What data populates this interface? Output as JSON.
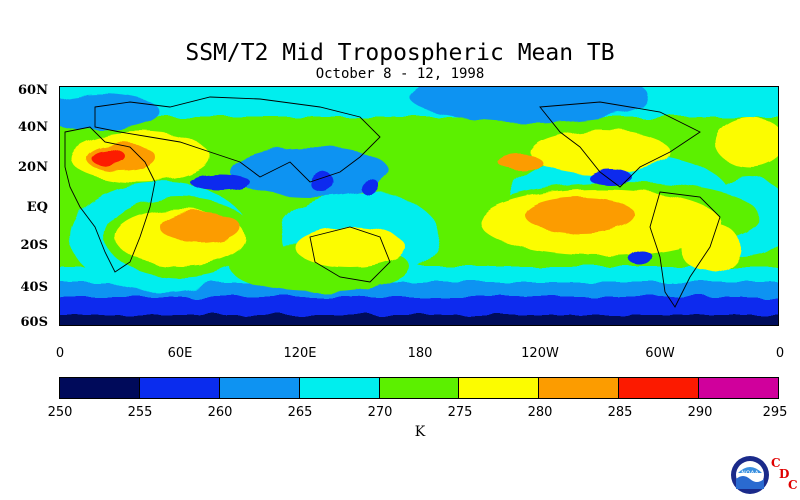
{
  "title": "SSM/T2 Mid Tropospheric Mean TB",
  "subtitle": "October 8 - 12, 1998",
  "lat_labels": [
    "60N",
    "40N",
    "20N",
    "EQ",
    "20S",
    "40S",
    "60S"
  ],
  "lon_labels": [
    "0",
    "60E",
    "120E",
    "180",
    "120W",
    "60W",
    "0"
  ],
  "colorbar": {
    "ticks": [
      "250",
      "255",
      "260",
      "265",
      "270",
      "275",
      "280",
      "285",
      "290",
      "295"
    ],
    "colors": [
      "#000a5a",
      "#0a2cee",
      "#0e93f2",
      "#00eeee",
      "#5cf000",
      "#fcfc00",
      "#fc9c00",
      "#fc1a00",
      "#d0009c"
    ],
    "unit": "K"
  },
  "logo": {
    "text": "NOAA",
    "letters": [
      "C",
      "D",
      "C"
    ]
  },
  "chart_data": {
    "type": "heatmap",
    "variable": "SSM/T2 Mid Tropospheric Mean TB",
    "units": "K",
    "period": "October 8 - 12, 1998",
    "x_range": [
      "0",
      "0"
    ],
    "y_range": [
      "60S",
      "60N"
    ],
    "levels": [
      250,
      255,
      260,
      265,
      270,
      275,
      280,
      285,
      290,
      295
    ]
  }
}
